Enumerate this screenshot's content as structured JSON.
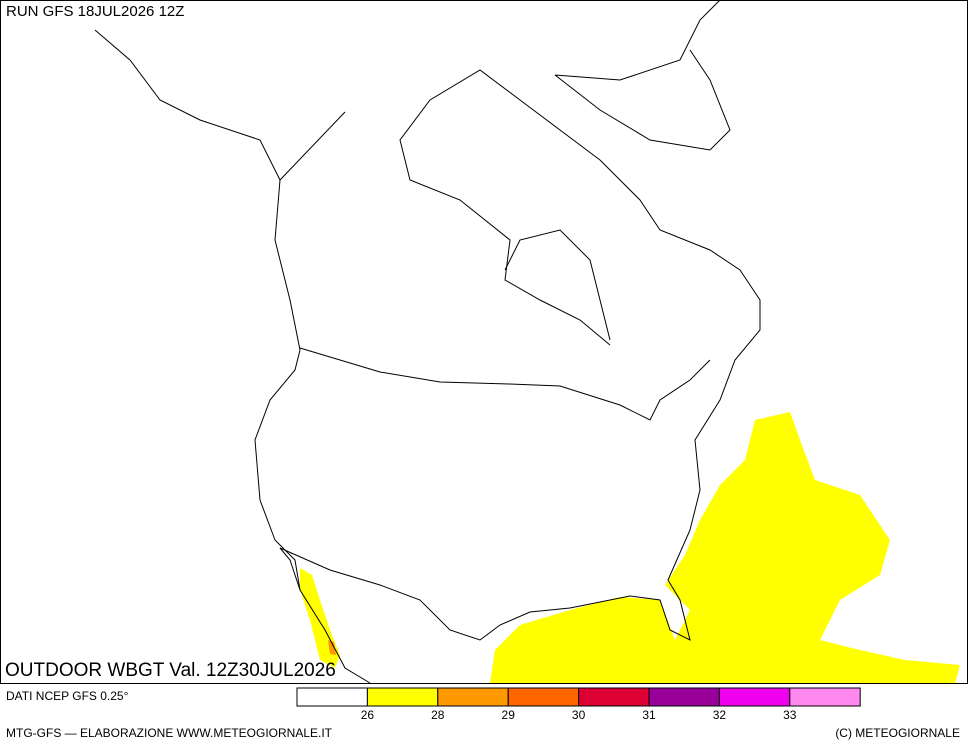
{
  "header": {
    "run": "RUN GFS 18JUL2026 12Z"
  },
  "map": {
    "title": "OUTDOOR WBGT Val. 12Z30JUL2026"
  },
  "footer": {
    "source": "DATI NCEP GFS 0.25°",
    "credit": "MTG-GFS — ELABORAZIONE WWW.METEOGIORNALE.IT",
    "copyright": "(C) METEOGIORNALE"
  },
  "legend": {
    "colors": [
      "#ffffff",
      "#ffff00",
      "#ff9900",
      "#ff6600",
      "#dd0033",
      "#990099",
      "#ee00ee",
      "#ff88ee"
    ],
    "labels": [
      26,
      28,
      29,
      30,
      31,
      32,
      33
    ]
  }
}
